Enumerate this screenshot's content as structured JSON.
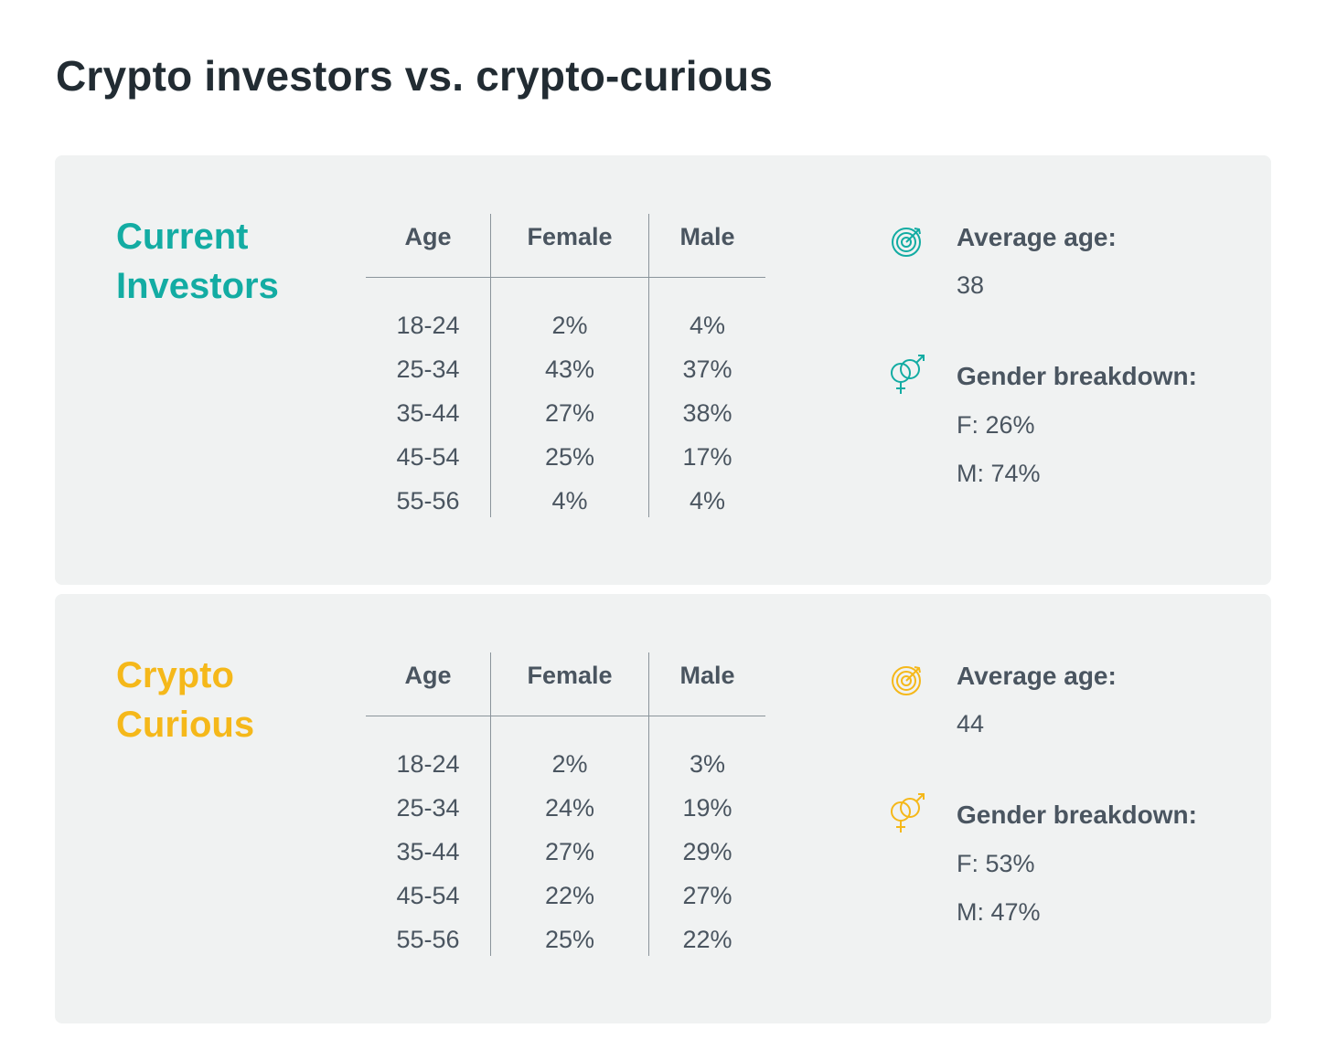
{
  "title": "Crypto investors vs. crypto-curious",
  "colors": {
    "investors": "#13aca3",
    "curious": "#f5b81a",
    "panel_bg": "#f0f2f2",
    "text": "#4a5560"
  },
  "table_headers": [
    "Age",
    "Female",
    "Male"
  ],
  "groups": [
    {
      "title_line1": "Current",
      "title_line2": "Investors",
      "rows": [
        [
          "18-24",
          "2%",
          "4%"
        ],
        [
          "25-34",
          "43%",
          "37%"
        ],
        [
          "35-44",
          "27%",
          "38%"
        ],
        [
          "45-54",
          "25%",
          "17%"
        ],
        [
          "55-56",
          "4%",
          "4%"
        ]
      ],
      "average_age_label": "Average age:",
      "average_age": "38",
      "gender_label": "Gender breakdown:",
      "female": "F: 26%",
      "male": "M: 74%",
      "age_icon": "target-icon",
      "gender_icon": "gender-icon"
    },
    {
      "title_line1": "Crypto",
      "title_line2": "Curious",
      "rows": [
        [
          "18-24",
          "2%",
          "3%"
        ],
        [
          "25-34",
          "24%",
          "19%"
        ],
        [
          "35-44",
          "27%",
          "29%"
        ],
        [
          "45-54",
          "22%",
          "27%"
        ],
        [
          "55-56",
          "25%",
          "22%"
        ]
      ],
      "average_age_label": "Average age:",
      "average_age": "44",
      "gender_label": "Gender breakdown:",
      "female": "F: 53%",
      "male": "M: 47%",
      "age_icon": "target-icon",
      "gender_icon": "gender-icon"
    }
  ]
}
